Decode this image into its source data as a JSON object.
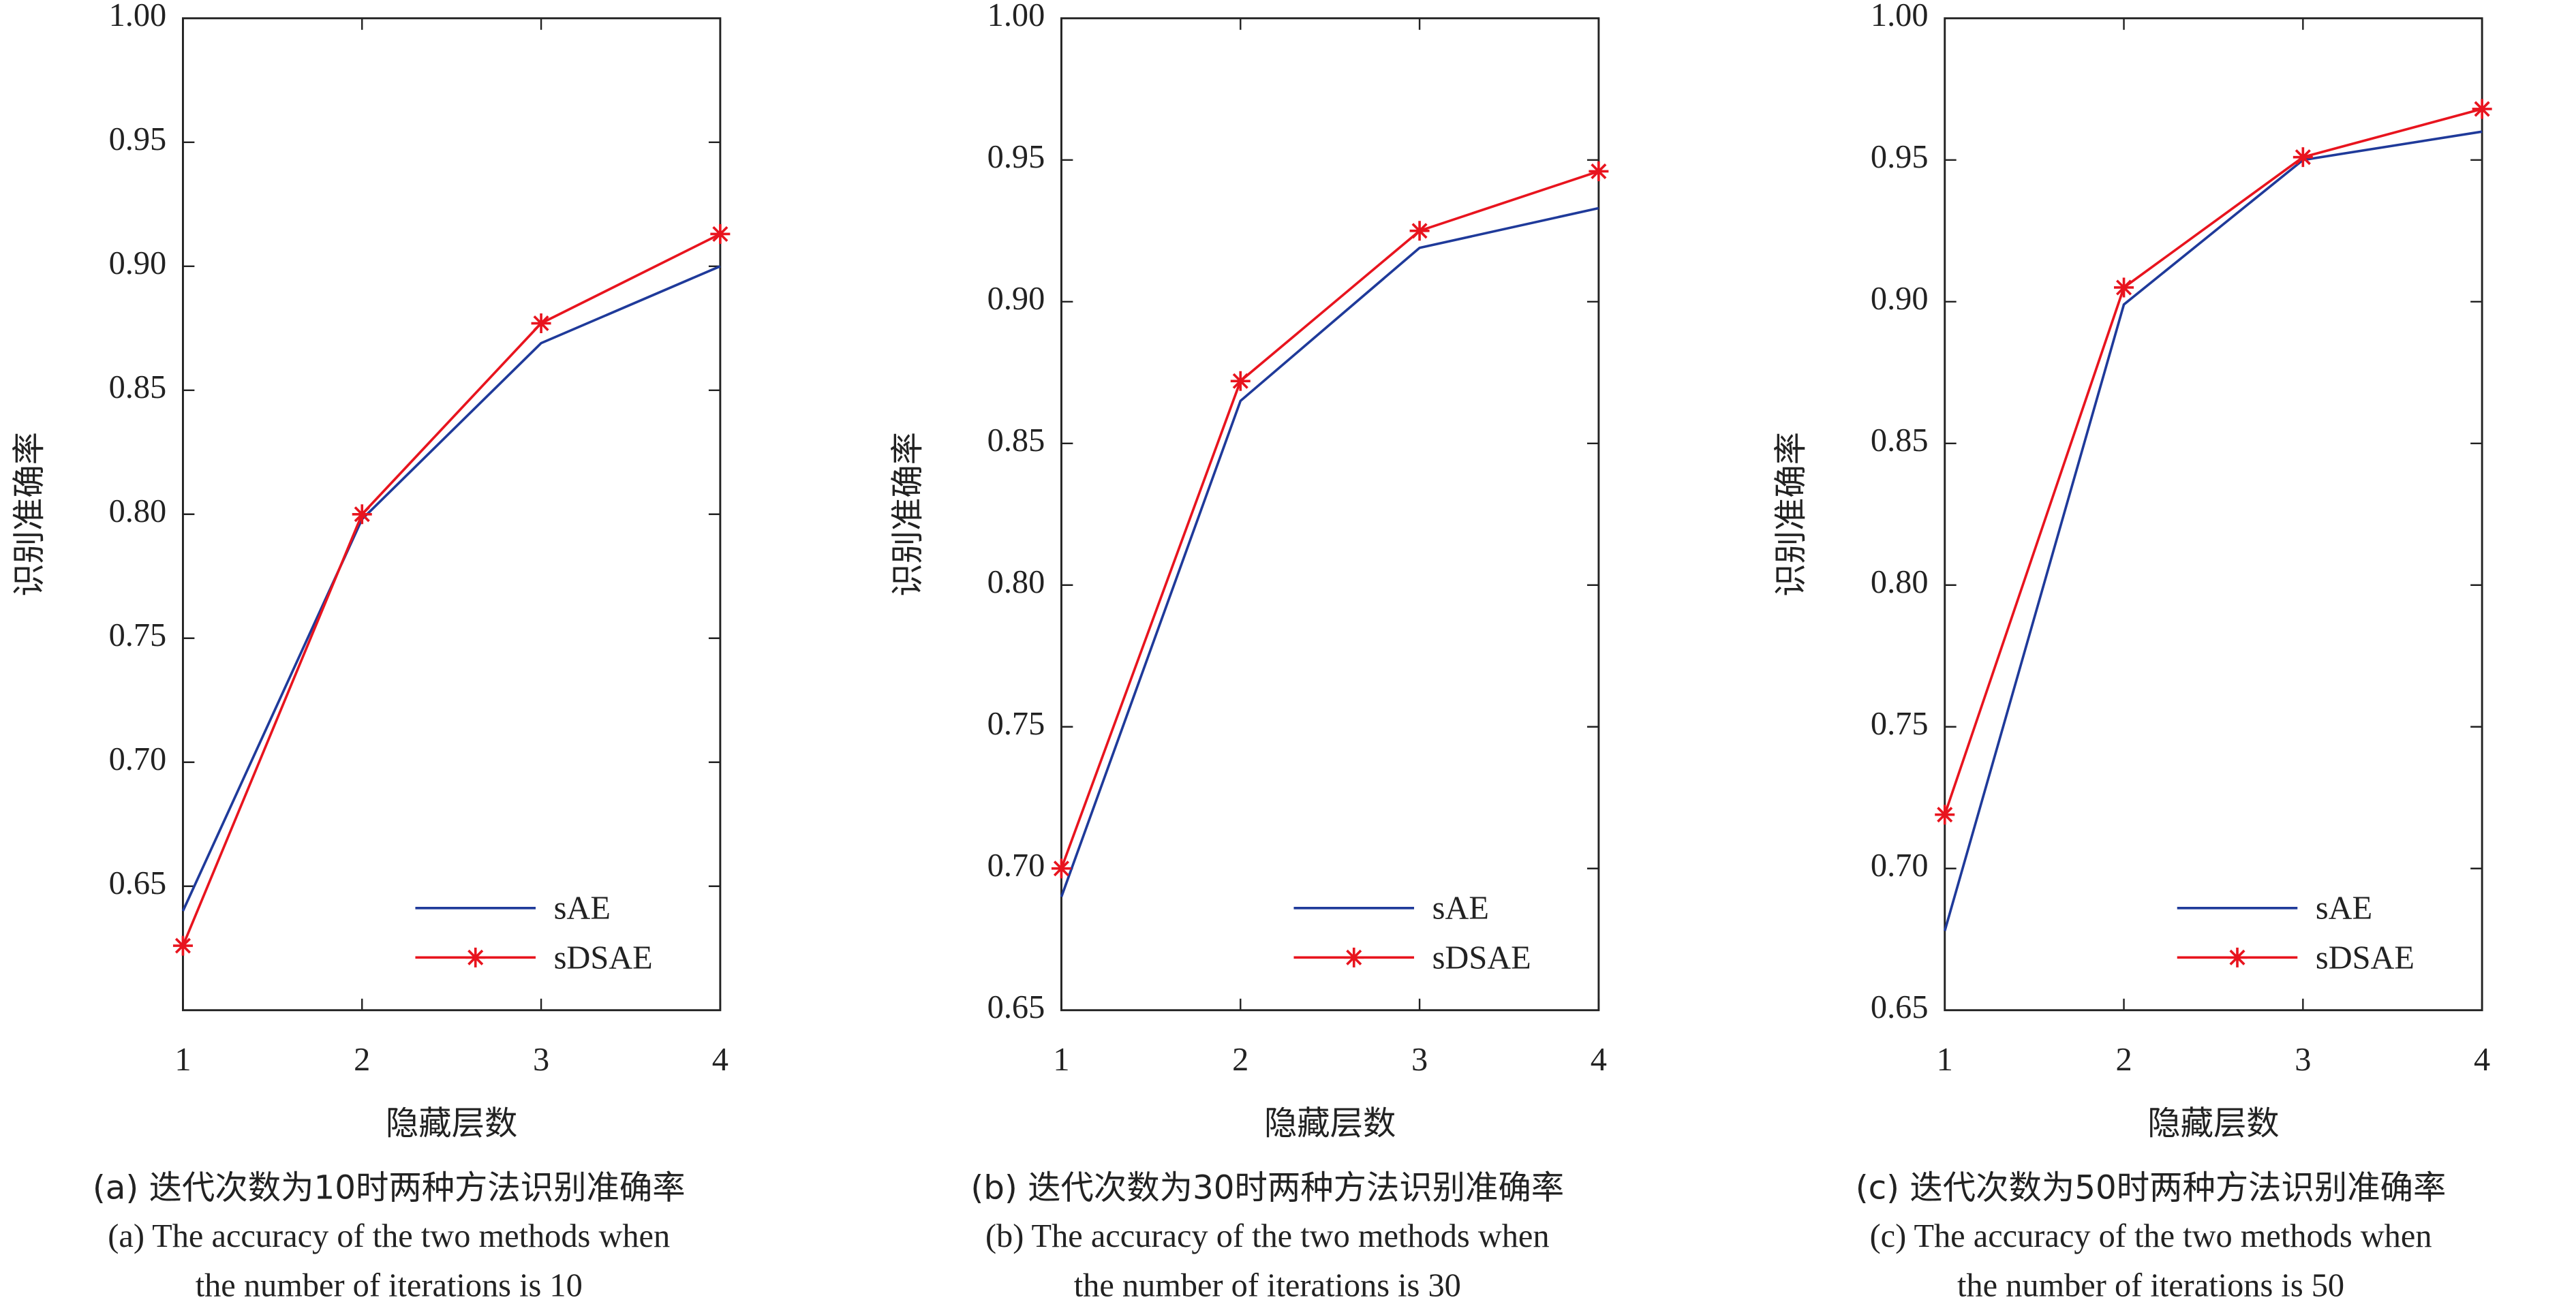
{
  "chart_data": [
    {
      "type": "line",
      "xlabel": "隐藏层数",
      "ylabel": "识别准确率",
      "caption": [
        "(a) 迭代次数为10时两种方法识别准确率",
        "(a) The accuracy of the two methods when",
        "the number of iterations is 10"
      ],
      "x": [
        1,
        2,
        3,
        4
      ],
      "xlim": [
        1,
        4
      ],
      "xticks": [
        1,
        2,
        3,
        4
      ],
      "ylim": [
        0.6,
        1.0
      ],
      "yticks": [
        0.65,
        {
          "value": 0.7,
          "label": "0.70"
        },
        0.75,
        {
          "value": 0.8,
          "label": "0.80"
        },
        0.85,
        {
          "value": 0.9,
          "label": "0.90"
        },
        0.95,
        {
          "value": 1.0,
          "label": "1.00"
        }
      ],
      "grid": false,
      "legend": "lower right",
      "series": [
        {
          "name": "sAE",
          "color": "#1f3a9a",
          "marker": "none",
          "values": [
            0.64,
            0.798,
            0.869,
            0.9
          ]
        },
        {
          "name": "sDSAE",
          "color": "#e8141e",
          "marker": "asterisk",
          "values": [
            0.626,
            0.8,
            0.877,
            0.913
          ]
        }
      ]
    },
    {
      "type": "line",
      "xlabel": "隐藏层数",
      "ylabel": "识别准确率",
      "caption": [
        "(b) 迭代次数为30时两种方法识别准确率",
        "(b) The accuracy of the two methods when",
        "the number of iterations is 30"
      ],
      "x": [
        1,
        2,
        3,
        4
      ],
      "xlim": [
        1,
        4
      ],
      "xticks": [
        1,
        2,
        3,
        4
      ],
      "ylim": [
        0.65,
        1.0
      ],
      "yticks": [
        0.65,
        {
          "value": 0.7,
          "label": "0.70"
        },
        0.75,
        {
          "value": 0.8,
          "label": "0.80"
        },
        0.85,
        {
          "value": 0.9,
          "label": "0.90"
        },
        0.95,
        {
          "value": 1.0,
          "label": "1.00"
        }
      ],
      "grid": false,
      "legend": "lower right",
      "series": [
        {
          "name": "sAE",
          "color": "#1f3a9a",
          "marker": "none",
          "values": [
            0.69,
            0.865,
            0.919,
            0.933
          ]
        },
        {
          "name": "sDSAE",
          "color": "#e8141e",
          "marker": "asterisk",
          "values": [
            0.7,
            0.872,
            0.925,
            0.946
          ]
        }
      ]
    },
    {
      "type": "line",
      "xlabel": "隐藏层数",
      "ylabel": "识别准确率",
      "caption": [
        "(c) 迭代次数为50时两种方法识别准确率",
        "(c) The accuracy of the two methods when",
        "the number of iterations is 50"
      ],
      "x": [
        1,
        2,
        3,
        4
      ],
      "xlim": [
        1,
        4
      ],
      "xticks": [
        1,
        2,
        3,
        4
      ],
      "ylim": [
        0.65,
        1.0
      ],
      "yticks": [
        0.65,
        {
          "value": 0.7,
          "label": "0.70"
        },
        0.75,
        {
          "value": 0.8,
          "label": "0.80"
        },
        0.85,
        {
          "value": 0.9,
          "label": "0.90"
        },
        0.95,
        {
          "value": 1.0,
          "label": "1.00"
        }
      ],
      "grid": false,
      "legend": "lower right",
      "series": [
        {
          "name": "sAE",
          "color": "#1f3a9a",
          "marker": "none",
          "values": [
            0.678,
            0.899,
            0.95,
            0.96
          ]
        },
        {
          "name": "sDSAE",
          "color": "#e8141e",
          "marker": "asterisk",
          "values": [
            0.719,
            0.905,
            0.951,
            0.968
          ]
        }
      ]
    }
  ]
}
